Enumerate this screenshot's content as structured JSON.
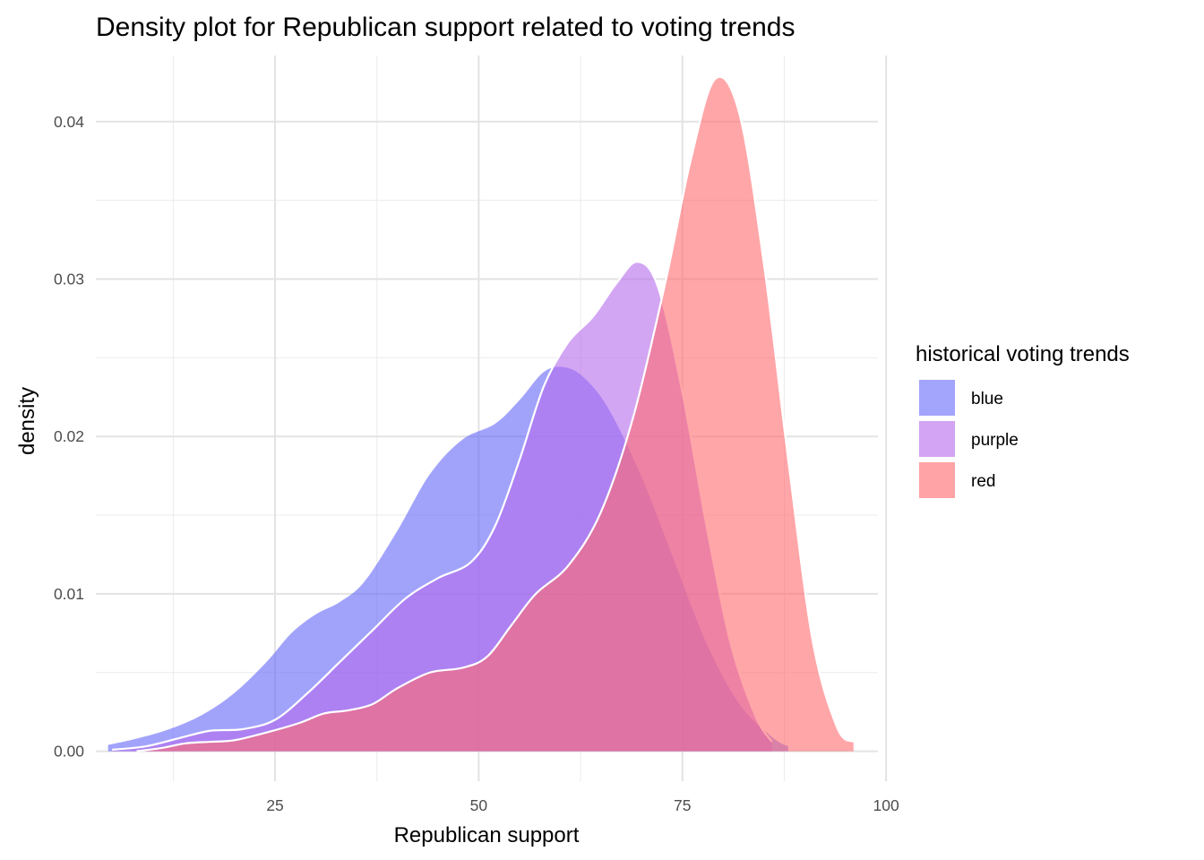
{
  "chart_data": {
    "type": "area",
    "title": "Density plot for Republican support related to voting trends",
    "xlabel": "Republican support",
    "ylabel": "density",
    "xlim": [
      3,
      99
    ],
    "ylim": [
      -0.0019,
      0.0442
    ],
    "x_ticks": [
      25,
      50,
      75,
      100
    ],
    "x_tick_labels": [
      "25",
      "50",
      "75",
      "100"
    ],
    "x_minor_ticks": [
      12.5,
      37.5,
      62.5,
      87.5
    ],
    "y_ticks": [
      0,
      0.01,
      0.02,
      0.03,
      0.04
    ],
    "y_tick_labels": [
      "0.00",
      "0.01",
      "0.02",
      "0.03",
      "0.04"
    ],
    "y_minor_ticks": [
      0.005,
      0.015,
      0.025,
      0.035
    ],
    "grid": true,
    "legend": {
      "title": "historical voting trends",
      "position": "right",
      "items": [
        {
          "label": "blue",
          "color": "#A3A4FC"
        },
        {
          "label": "purple",
          "color": "#D3A4F4"
        },
        {
          "label": "red",
          "color": "#FFA3A6"
        }
      ]
    },
    "series": [
      {
        "name": "blue",
        "color": "#6265F8",
        "opacity": 0.6,
        "x": [
          4.5,
          8,
          12,
          16,
          20,
          24,
          27,
          30,
          33,
          36,
          40,
          44,
          48,
          52,
          55,
          58,
          60.5,
          63,
          66,
          70,
          74,
          78,
          82,
          86,
          88
        ],
        "y": [
          0.0004,
          0.0008,
          0.0014,
          0.0023,
          0.0037,
          0.0057,
          0.0075,
          0.0087,
          0.0095,
          0.0108,
          0.014,
          0.0176,
          0.0198,
          0.0208,
          0.0223,
          0.0241,
          0.0244,
          0.0237,
          0.0217,
          0.0174,
          0.0121,
          0.0068,
          0.003,
          0.0009,
          0.0003
        ]
      },
      {
        "name": "purple",
        "color": "#B56AEC",
        "opacity": 0.6,
        "x": [
          5,
          9,
          13,
          17,
          21,
          25,
          29,
          33,
          37,
          41,
          45,
          49,
          52,
          55,
          58,
          61,
          64,
          67,
          69.5,
          72,
          75,
          78,
          81,
          84,
          86
        ],
        "y": [
          0.0001,
          0.0003,
          0.0008,
          0.0013,
          0.0014,
          0.002,
          0.0037,
          0.0057,
          0.0077,
          0.0097,
          0.011,
          0.012,
          0.0143,
          0.0185,
          0.0232,
          0.026,
          0.0276,
          0.0298,
          0.0311,
          0.0295,
          0.0228,
          0.0142,
          0.0067,
          0.0022,
          0.0006
        ]
      },
      {
        "name": "red",
        "color": "#FF6B70",
        "opacity": 0.6,
        "x": [
          8,
          11,
          14,
          17,
          20,
          24,
          28,
          31,
          34,
          37,
          40,
          44,
          48,
          51,
          54,
          57,
          61,
          65,
          69,
          73,
          76,
          79,
          82,
          85,
          88,
          91,
          94,
          96
        ],
        "y": [
          0.0,
          0.0002,
          0.0005,
          0.0006,
          0.0007,
          0.0012,
          0.0018,
          0.0024,
          0.0026,
          0.003,
          0.004,
          0.005,
          0.0053,
          0.006,
          0.008,
          0.01,
          0.0118,
          0.0152,
          0.0213,
          0.03,
          0.0375,
          0.0427,
          0.0405,
          0.031,
          0.0185,
          0.007,
          0.0015,
          0.0006
        ]
      }
    ]
  }
}
